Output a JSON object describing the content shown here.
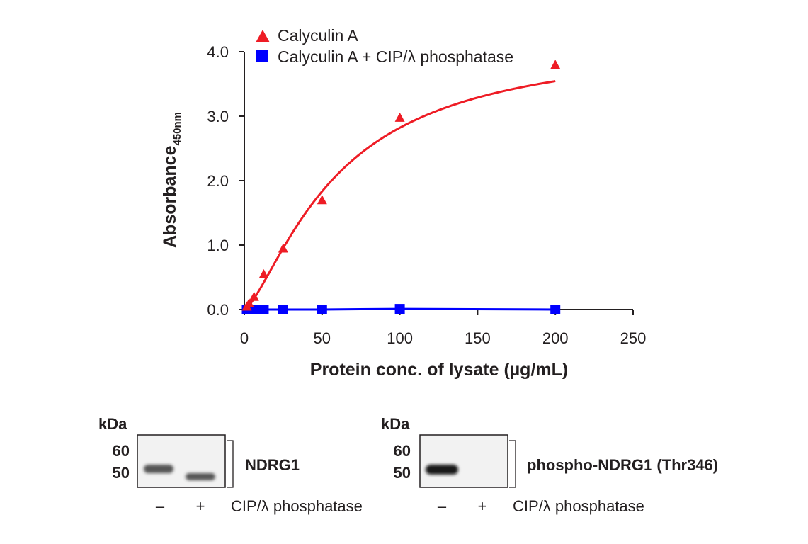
{
  "chart_data": {
    "type": "line",
    "xlabel": "Protein conc. of lysate (µg/mL)",
    "ylabel": "Absorbance",
    "ylabel_subscript": "450nm",
    "xlim": [
      0,
      250
    ],
    "ylim": [
      0,
      4.0
    ],
    "x_ticks": [
      0,
      50,
      100,
      150,
      200,
      250
    ],
    "x_tick_labels": [
      "0",
      "50",
      "100",
      "150",
      "200",
      "250"
    ],
    "y_ticks": [
      0,
      1,
      2,
      3,
      4
    ],
    "y_tick_labels": [
      "0.0",
      "1.0",
      "2.0",
      "3.0",
      "4.0"
    ],
    "legend_position": "top-left",
    "series": [
      {
        "name": "Calyculin A",
        "color": "#ee1c25",
        "marker": "triangle",
        "x": [
          1.6,
          3.1,
          6.25,
          12.5,
          25,
          50,
          100,
          200
        ],
        "y": [
          0.05,
          0.1,
          0.2,
          0.55,
          0.95,
          1.7,
          2.98,
          3.8
        ],
        "fit_curve": {
          "ymax": 4.2,
          "ec50": 60,
          "hill": 1.4
        }
      },
      {
        "name": "Calyculin A + CIP/λ phosphatase",
        "color": "#0000ff",
        "marker": "square",
        "x": [
          1.6,
          3.1,
          6.25,
          12.5,
          25,
          50,
          100,
          200
        ],
        "y": [
          0.0,
          0.0,
          0.0,
          0.0,
          0.0,
          0.0,
          0.01,
          0.0
        ]
      }
    ]
  },
  "blots": [
    {
      "kda_label": "kDa",
      "markers": [
        "60",
        "50"
      ],
      "target": "NDRG1",
      "lanes": [
        "–",
        "+"
      ],
      "treatment": "CIP/λ phosphatase"
    },
    {
      "kda_label": "kDa",
      "markers": [
        "60",
        "50"
      ],
      "target": "phospho-NDRG1 (Thr346)",
      "lanes": [
        "–",
        "+"
      ],
      "treatment": "CIP/λ phosphatase"
    }
  ]
}
